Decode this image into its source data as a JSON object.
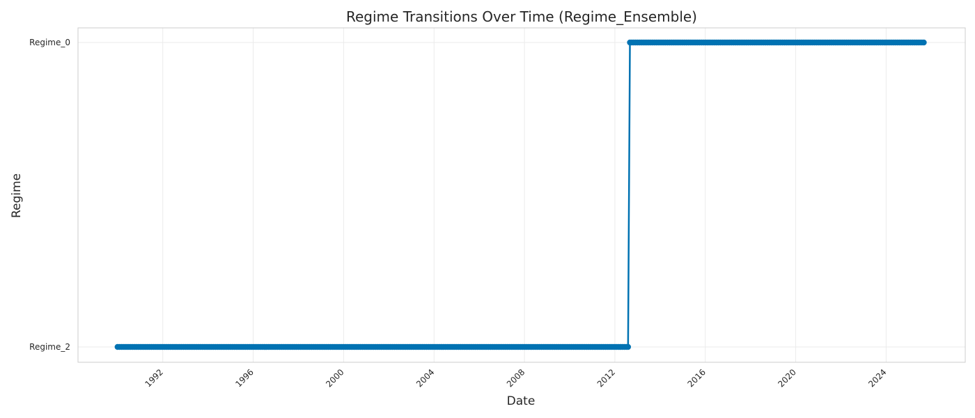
{
  "chart_data": {
    "type": "line",
    "title": "Regime Transitions Over Time (Regime_Ensemble)",
    "xlabel": "Date",
    "ylabel": "Regime",
    "x_tick_labels": [
      "1992",
      "1996",
      "2000",
      "2004",
      "2008",
      "2012",
      "2016",
      "2020",
      "2024"
    ],
    "y_categories": [
      "Regime_2",
      "Regime_0"
    ],
    "xlim": [
      "1988-04-01",
      "2027-07-01"
    ],
    "grid": true,
    "marker": "circle",
    "colors": {
      "series": "#0072b2",
      "grid": "#ebebeb",
      "frame": "#cccccc",
      "text": "#262626"
    },
    "series": [
      {
        "frequency": "monthly",
        "segments": [
          {
            "start": "1990-01",
            "end": "2012-08",
            "regime": "Regime_2"
          },
          {
            "start": "2012-09",
            "end": "2025-09",
            "regime": "Regime_0"
          }
        ]
      }
    ]
  }
}
